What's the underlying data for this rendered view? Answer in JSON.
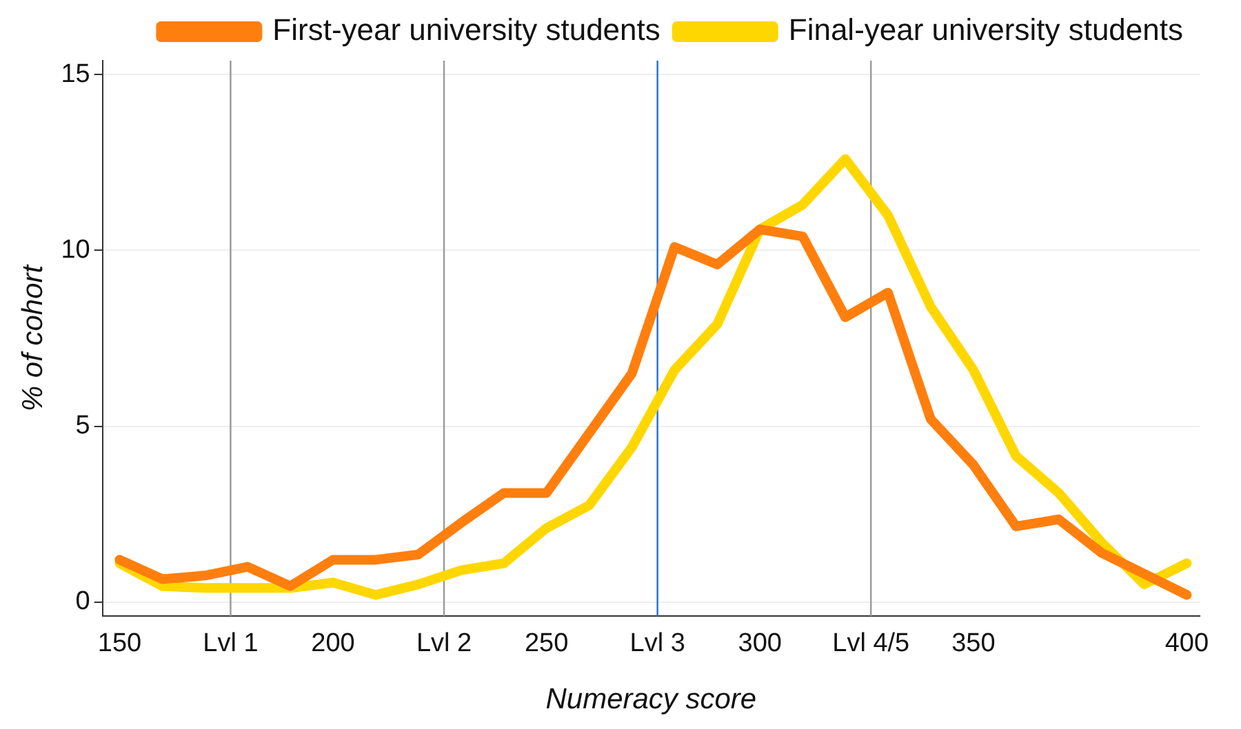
{
  "chart_data": {
    "type": "line",
    "xlabel": "Numeracy score",
    "ylabel": "% of cohort",
    "x": [
      150,
      160,
      170,
      180,
      190,
      200,
      210,
      220,
      230,
      240,
      250,
      260,
      270,
      280,
      290,
      300,
      310,
      320,
      330,
      340,
      350,
      360,
      370,
      380,
      390,
      400
    ],
    "series": [
      {
        "name": "First-year university students",
        "color": "#ff7f0e",
        "values": [
          1.2,
          0.65,
          0.75,
          1.0,
          0.45,
          1.2,
          1.2,
          1.35,
          2.25,
          3.1,
          3.1,
          4.8,
          6.5,
          10.1,
          9.6,
          10.6,
          10.4,
          8.1,
          8.8,
          5.2,
          3.9,
          2.15,
          2.35,
          1.4,
          0.8,
          0.2
        ]
      },
      {
        "name": "Final-year university students",
        "color": "#ffd700",
        "values": [
          1.1,
          0.45,
          0.4,
          0.4,
          0.4,
          0.55,
          0.2,
          0.5,
          0.9,
          1.1,
          2.1,
          2.75,
          4.4,
          6.6,
          7.9,
          10.6,
          11.3,
          12.6,
          11.0,
          8.4,
          6.6,
          4.15,
          3.1,
          1.7,
          0.5,
          1.1
        ]
      }
    ],
    "xlim": [
      146,
      403
    ],
    "xticks": [
      150,
      {
        "value": 176,
        "label": "Lvl 1"
      },
      200,
      {
        "value": 226,
        "label": "Lvl 2"
      },
      250,
      {
        "value": 276,
        "label": "Lvl 3"
      },
      300,
      {
        "value": 326,
        "label": "Lvl 4/5"
      },
      350,
      400
    ],
    "ylim": [
      -0.4,
      15.4
    ],
    "yticks": [
      0,
      5,
      10,
      15
    ],
    "ref_lines": [
      {
        "axis": "x",
        "value": 176,
        "color": "#999999"
      },
      {
        "axis": "x",
        "value": 226,
        "color": "#999999"
      },
      {
        "axis": "x",
        "value": 276,
        "color": "#1e6fd9"
      },
      {
        "axis": "x",
        "value": 326,
        "color": "#999999"
      }
    ],
    "grid": "y",
    "legend": "top",
    "marker": "none",
    "line_style": "solid"
  }
}
